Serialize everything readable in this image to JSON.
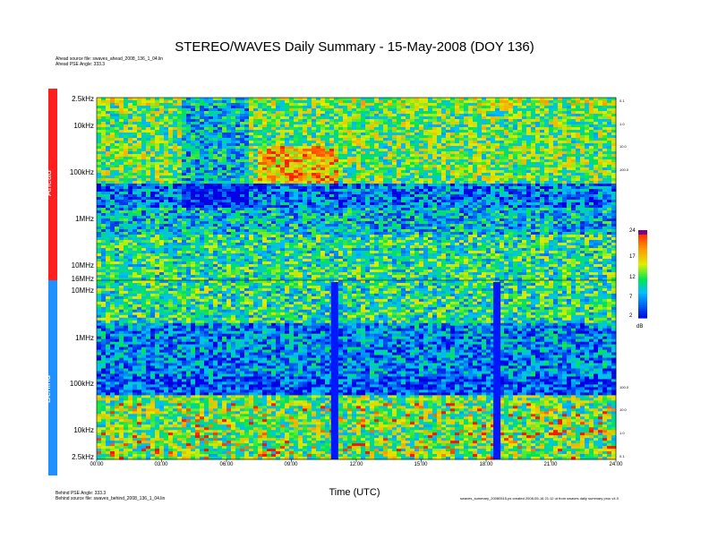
{
  "chart_data": {
    "type": "heatmap",
    "title": "STEREO/WAVES Daily Summary - 15-May-2008 (DOY 136)",
    "xlabel": "Time (UTC)",
    "x_ticks": [
      "00:00",
      "03:00",
      "06:00",
      "09:00",
      "12:00",
      "15:00",
      "18:00",
      "21:00",
      "24:00"
    ],
    "xlim_hours": [
      0,
      24
    ],
    "panels": [
      {
        "name": "Ahead",
        "color": "#ff1f1f",
        "y_ticks": [
          "2.5kHz",
          "10kHz",
          "100kHz",
          "1MHz",
          "10MHz",
          "16MHz"
        ],
        "right_ticks": [
          "0.1",
          "1.0",
          "10.0",
          "100.0"
        ],
        "source_line": "Ahead source file: swaves_ahead_2008_136_1_04.lin",
        "psd_line": "Ahead PSE Angle: 333.3"
      },
      {
        "name": "Behind",
        "color": "#1e90ff",
        "y_ticks": [
          "16MHz",
          "10MHz",
          "1MHz",
          "100kHz",
          "10kHz",
          "2.5kHz"
        ],
        "right_ticks": [
          "100.0",
          "10.0",
          "1.0",
          "0.1"
        ],
        "source_line": "Behind source file: swaves_behind_2008_136_1_04.lin",
        "psd_line": "Behind PSE Angle: 333.3"
      }
    ],
    "data_gaps_hours": [
      11.0,
      18.5
    ],
    "colorbar": {
      "unit": "dB",
      "ticks": [
        "24",
        "17",
        "12",
        "7",
        "2"
      ],
      "range": [
        2,
        24
      ]
    },
    "footer_right": "swaves_summary_20080515.ps created 2008-05-16 21:12 ut from swaves daily summary proc v4.0"
  },
  "colors": {
    "low": "#0000ff",
    "mid": "#00ff00",
    "high": "#ffff00",
    "peak": "#ff0000"
  }
}
